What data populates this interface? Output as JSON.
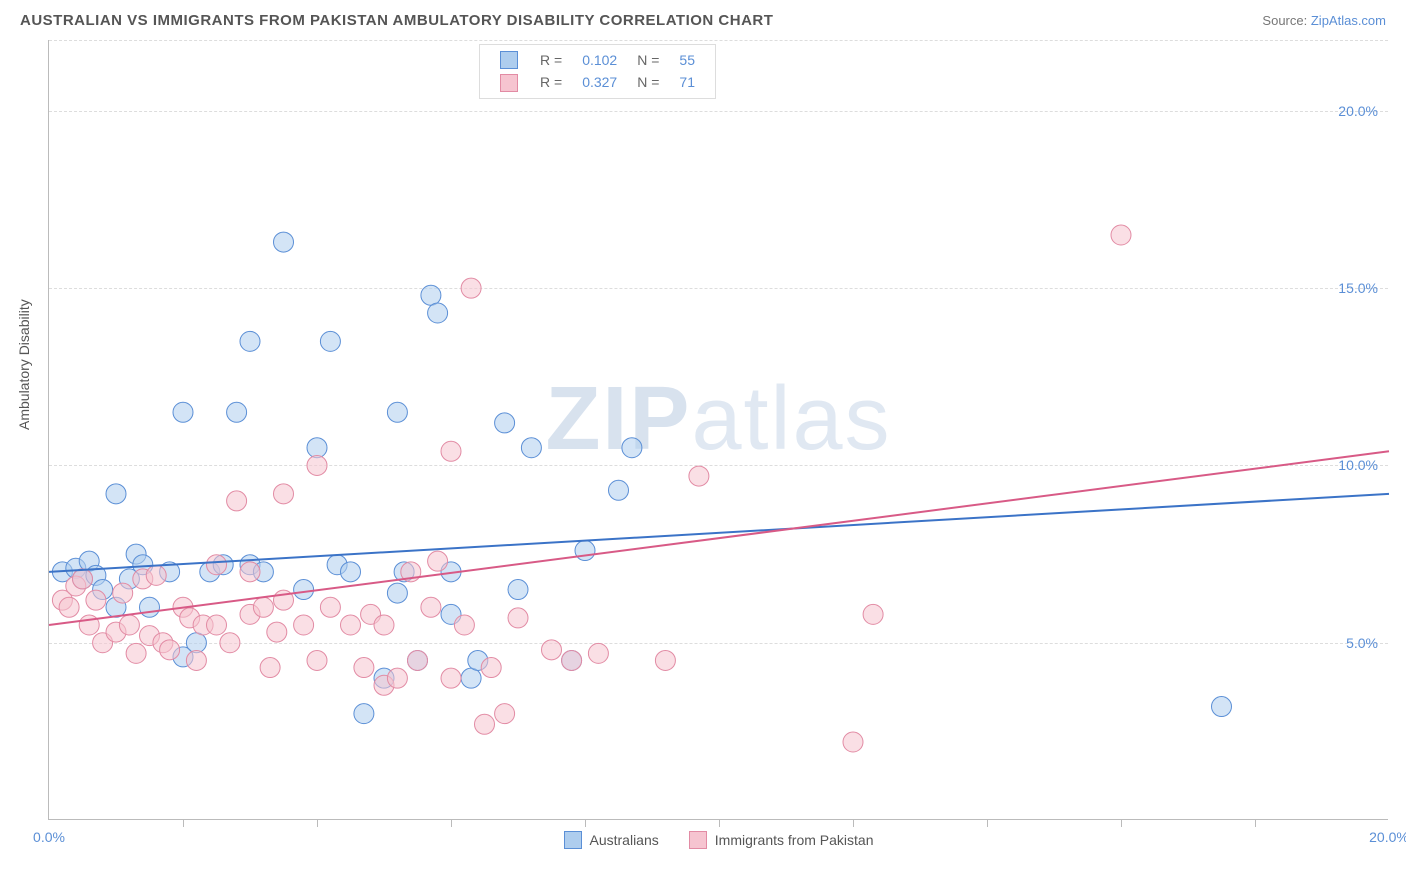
{
  "header": {
    "title": "AUSTRALIAN VS IMMIGRANTS FROM PAKISTAN AMBULATORY DISABILITY CORRELATION CHART",
    "source_label": "Source:",
    "source_name": "ZipAtlas.com"
  },
  "chart": {
    "type": "scatter",
    "y_axis_label": "Ambulatory Disability",
    "xlim": [
      0,
      20
    ],
    "ylim": [
      0,
      22
    ],
    "x_tick_labels": [
      {
        "v": 0,
        "label": "0.0%"
      },
      {
        "v": 20,
        "label": "20.0%"
      }
    ],
    "x_tick_marks": [
      2,
      4,
      6,
      8,
      10,
      12,
      14,
      16,
      18
    ],
    "y_tick_labels": [
      {
        "v": 5,
        "label": "5.0%"
      },
      {
        "v": 10,
        "label": "10.0%"
      },
      {
        "v": 15,
        "label": "15.0%"
      },
      {
        "v": 20,
        "label": "20.0%"
      }
    ],
    "y_grid": [
      5,
      10,
      15,
      20,
      22
    ],
    "background_color": "#ffffff",
    "grid_color": "#dddddd",
    "marker_radius": 10,
    "marker_opacity": 0.55,
    "marker_stroke_width": 1,
    "series": [
      {
        "name": "Australians",
        "fill": "#aecdee",
        "stroke": "#5b8fd6",
        "r": 0.102,
        "n": 55,
        "trend": {
          "x1": 0,
          "y1": 7.0,
          "x2": 20,
          "y2": 9.2,
          "color": "#3b73c7",
          "width": 2
        },
        "points": [
          [
            0.2,
            7.0
          ],
          [
            0.4,
            7.1
          ],
          [
            0.5,
            6.8
          ],
          [
            0.6,
            7.3
          ],
          [
            0.7,
            6.9
          ],
          [
            0.8,
            6.5
          ],
          [
            1.0,
            6.0
          ],
          [
            1.0,
            9.2
          ],
          [
            1.2,
            6.8
          ],
          [
            1.3,
            7.5
          ],
          [
            1.4,
            7.2
          ],
          [
            1.5,
            6.0
          ],
          [
            1.8,
            7.0
          ],
          [
            2.0,
            4.6
          ],
          [
            2.0,
            11.5
          ],
          [
            2.2,
            5.0
          ],
          [
            2.4,
            7.0
          ],
          [
            2.6,
            7.2
          ],
          [
            2.8,
            11.5
          ],
          [
            3.0,
            7.2
          ],
          [
            3.0,
            13.5
          ],
          [
            3.2,
            7.0
          ],
          [
            3.5,
            16.3
          ],
          [
            3.8,
            6.5
          ],
          [
            4.0,
            10.5
          ],
          [
            4.2,
            13.5
          ],
          [
            4.3,
            7.2
          ],
          [
            4.5,
            7.0
          ],
          [
            4.7,
            3.0
          ],
          [
            5.0,
            4.0
          ],
          [
            5.2,
            6.4
          ],
          [
            5.2,
            11.5
          ],
          [
            5.3,
            7.0
          ],
          [
            5.5,
            4.5
          ],
          [
            5.7,
            14.8
          ],
          [
            5.8,
            14.3
          ],
          [
            6.0,
            5.8
          ],
          [
            6.0,
            7.0
          ],
          [
            6.3,
            4.0
          ],
          [
            6.4,
            4.5
          ],
          [
            6.8,
            11.2
          ],
          [
            7.0,
            6.5
          ],
          [
            7.2,
            10.5
          ],
          [
            7.8,
            4.5
          ],
          [
            8.0,
            7.6
          ],
          [
            8.5,
            9.3
          ],
          [
            8.7,
            10.5
          ],
          [
            17.5,
            3.2
          ]
        ]
      },
      {
        "name": "Immigrants from Pakistan",
        "fill": "#f6c4d0",
        "stroke": "#e28ba4",
        "r": 0.327,
        "n": 71,
        "trend": {
          "x1": 0,
          "y1": 5.5,
          "x2": 20,
          "y2": 10.4,
          "color": "#d85a86",
          "width": 2
        },
        "points": [
          [
            0.2,
            6.2
          ],
          [
            0.3,
            6.0
          ],
          [
            0.4,
            6.6
          ],
          [
            0.5,
            6.8
          ],
          [
            0.6,
            5.5
          ],
          [
            0.7,
            6.2
          ],
          [
            0.8,
            5.0
          ],
          [
            1.0,
            5.3
          ],
          [
            1.1,
            6.4
          ],
          [
            1.2,
            5.5
          ],
          [
            1.3,
            4.7
          ],
          [
            1.4,
            6.8
          ],
          [
            1.5,
            5.2
          ],
          [
            1.6,
            6.9
          ],
          [
            1.7,
            5.0
          ],
          [
            1.8,
            4.8
          ],
          [
            2.0,
            6.0
          ],
          [
            2.1,
            5.7
          ],
          [
            2.2,
            4.5
          ],
          [
            2.3,
            5.5
          ],
          [
            2.5,
            5.5
          ],
          [
            2.5,
            7.2
          ],
          [
            2.7,
            5.0
          ],
          [
            2.8,
            9.0
          ],
          [
            3.0,
            7.0
          ],
          [
            3.0,
            5.8
          ],
          [
            3.2,
            6.0
          ],
          [
            3.3,
            4.3
          ],
          [
            3.4,
            5.3
          ],
          [
            3.5,
            6.2
          ],
          [
            3.5,
            9.2
          ],
          [
            3.8,
            5.5
          ],
          [
            4.0,
            4.5
          ],
          [
            4.0,
            10.0
          ],
          [
            4.2,
            6.0
          ],
          [
            4.5,
            5.5
          ],
          [
            4.7,
            4.3
          ],
          [
            4.8,
            5.8
          ],
          [
            5.0,
            5.5
          ],
          [
            5.0,
            3.8
          ],
          [
            5.2,
            4.0
          ],
          [
            5.4,
            7.0
          ],
          [
            5.5,
            4.5
          ],
          [
            5.7,
            6.0
          ],
          [
            5.8,
            7.3
          ],
          [
            6.0,
            4.0
          ],
          [
            6.0,
            10.4
          ],
          [
            6.2,
            5.5
          ],
          [
            6.3,
            15.0
          ],
          [
            6.5,
            2.7
          ],
          [
            6.6,
            4.3
          ],
          [
            6.8,
            3.0
          ],
          [
            7.0,
            5.7
          ],
          [
            7.5,
            4.8
          ],
          [
            7.8,
            4.5
          ],
          [
            8.2,
            4.7
          ],
          [
            9.2,
            4.5
          ],
          [
            9.7,
            9.7
          ],
          [
            12.0,
            2.2
          ],
          [
            12.3,
            5.8
          ],
          [
            16.0,
            16.5
          ]
        ]
      }
    ],
    "legend_top": {
      "rows": [
        {
          "swatch": "blue",
          "r": "0.102",
          "n": "55"
        },
        {
          "swatch": "pink",
          "r": "0.327",
          "n": "71"
        }
      ]
    },
    "legend_bottom": [
      {
        "swatch": "blue",
        "label": "Australians"
      },
      {
        "swatch": "pink",
        "label": "Immigrants from Pakistan"
      }
    ],
    "watermark": {
      "bold": "ZIP",
      "light": "atlas"
    }
  }
}
